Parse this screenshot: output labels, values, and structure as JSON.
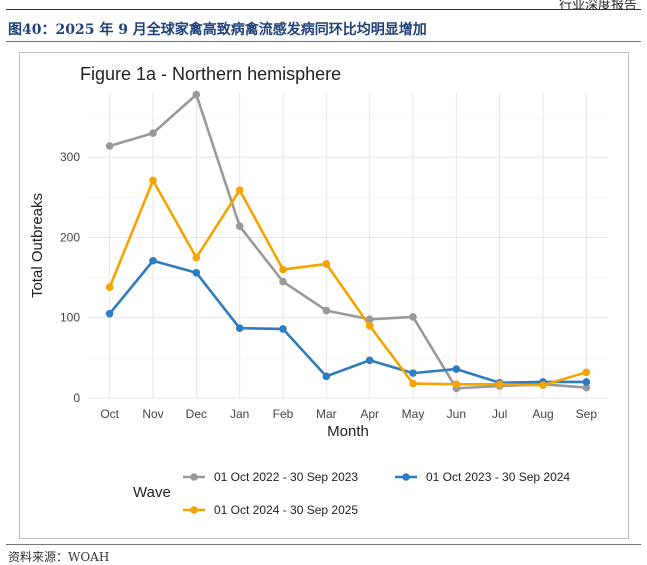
{
  "page": {
    "header_right": "行业深度报告",
    "caption": "图40：2025 年 9 月全球家禽高致病禽流感发病同环比均明显增加",
    "source": "资料来源：WOAH"
  },
  "chart_data": {
    "type": "line",
    "title": "Figure 1a - Northern hemisphere",
    "xlabel": "Month",
    "ylabel": "Total Outbreaks",
    "categories": [
      "Oct",
      "Nov",
      "Dec",
      "Jan",
      "Feb",
      "Mar",
      "Apr",
      "May",
      "Jun",
      "Jul",
      "Aug",
      "Sep"
    ],
    "y_ticks": [
      0,
      100,
      200,
      300
    ],
    "ylim": [
      0,
      380
    ],
    "grid": true,
    "legend": {
      "title": "Wave",
      "position": "bottom"
    },
    "series": [
      {
        "name": "01 Oct 2022 - 30 Sep 2023",
        "color": "#999999",
        "values": [
          314,
          330,
          378,
          214,
          145,
          109,
          98,
          101,
          12,
          15,
          17,
          13
        ]
      },
      {
        "name": "01 Oct 2023 - 30 Sep 2024",
        "color": "#2e7bbf",
        "values": [
          105,
          171,
          156,
          87,
          86,
          27,
          47,
          31,
          36,
          19,
          20,
          20
        ]
      },
      {
        "name": "01 Oct 2024 - 30 Sep 2025",
        "color": "#f5a300",
        "values": [
          138,
          271,
          175,
          259,
          160,
          167,
          90,
          18,
          17,
          17,
          16,
          32
        ]
      }
    ]
  }
}
